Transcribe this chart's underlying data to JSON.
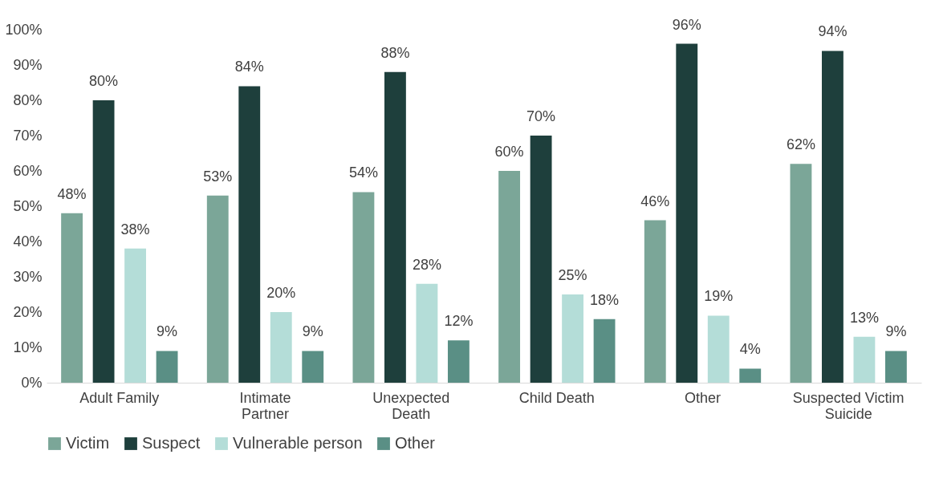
{
  "chart_data": {
    "type": "bar",
    "categories": [
      "Adult Family",
      "Intimate Partner",
      "Unexpected Death",
      "Child Death",
      "Other",
      "Suspected Victim Suicide"
    ],
    "series": [
      {
        "name": "Victim",
        "color": "#7ba698",
        "values": [
          48,
          53,
          54,
          60,
          46,
          62
        ],
        "value_labels": [
          "48%",
          "53%",
          "54%",
          "60%",
          "46%",
          "62%"
        ]
      },
      {
        "name": "Suspect",
        "color": "#1e3f3c",
        "values": [
          80,
          84,
          88,
          70,
          96,
          94
        ],
        "value_labels": [
          "80%",
          "84%",
          "88%",
          "70%",
          "96%",
          "94%"
        ]
      },
      {
        "name": "Vulnerable person",
        "color": "#b4ddd8",
        "values": [
          38,
          20,
          28,
          25,
          19,
          13
        ],
        "value_labels": [
          "38%",
          "20%",
          "28%",
          "25%",
          "19%",
          "13%"
        ]
      },
      {
        "name": "Other",
        "color": "#5a8f85",
        "values": [
          9,
          9,
          12,
          18,
          4,
          9
        ],
        "value_labels": [
          "9%",
          "9%",
          "12%",
          "18%",
          "4%",
          "9%"
        ]
      }
    ],
    "ylim": [
      0,
      100
    ],
    "yticks": [
      {
        "value": 0,
        "label": "0%"
      },
      {
        "value": 10,
        "label": "10%"
      },
      {
        "value": 20,
        "label": "20%"
      },
      {
        "value": 30,
        "label": "30%"
      },
      {
        "value": 40,
        "label": "40%"
      },
      {
        "value": 50,
        "label": "50%"
      },
      {
        "value": 60,
        "label": "60%"
      },
      {
        "value": 70,
        "label": "70%"
      },
      {
        "value": 80,
        "label": "80%"
      },
      {
        "value": 90,
        "label": "90%"
      },
      {
        "value": 100,
        "label": "100%"
      }
    ],
    "grid": false,
    "legend": "bottom"
  }
}
